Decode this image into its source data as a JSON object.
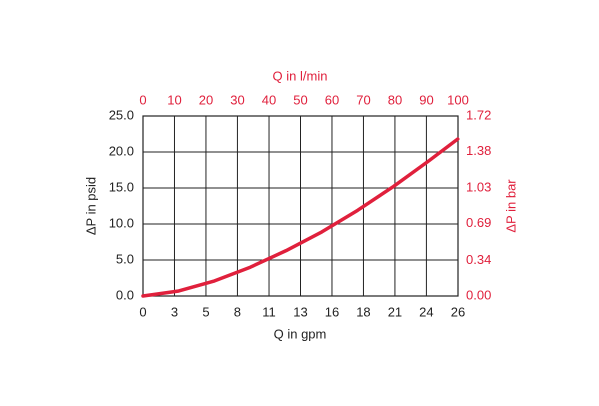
{
  "chart_data": {
    "type": "line",
    "x_label": "Q in gpm",
    "x2_label": "Q in l/min",
    "y_label": "ΔP in psid",
    "y2_label": "ΔP in bar",
    "xlim": [
      0,
      26.42
    ],
    "xticks": [
      0,
      {
        "value": 2.64,
        "label": "3"
      },
      {
        "value": 5.28,
        "label": "5"
      },
      {
        "value": 7.92,
        "label": "8"
      },
      {
        "value": 10.57,
        "label": "11"
      },
      {
        "value": 13.21,
        "label": "13"
      },
      {
        "value": 15.85,
        "label": "16"
      },
      {
        "value": 18.49,
        "label": "18"
      },
      {
        "value": 21.13,
        "label": "21"
      },
      {
        "value": 23.77,
        "label": "24"
      },
      {
        "value": 26.42,
        "label": "26"
      }
    ],
    "x2lim": [
      0,
      100
    ],
    "x2ticks": [
      0,
      10,
      20,
      30,
      40,
      50,
      60,
      70,
      80,
      90,
      100
    ],
    "ylim": [
      0,
      25
    ],
    "yticks": [
      {
        "value": 0,
        "label": "0.0"
      },
      {
        "value": 5,
        "label": "5.0"
      },
      {
        "value": 10,
        "label": "10.0"
      },
      {
        "value": 15,
        "label": "15.0"
      },
      {
        "value": 20,
        "label": "20.0"
      },
      {
        "value": 25,
        "label": "25.0"
      }
    ],
    "y2lim": [
      0,
      1.72
    ],
    "y2ticks": [
      {
        "value": 0,
        "label": "0.00"
      },
      0.34,
      0.69,
      1.03,
      1.38,
      1.72
    ],
    "grid": true,
    "accent_color": "#e0203c",
    "series": [
      {
        "color": "#e0203c",
        "x": [
          0,
          3,
          6,
          9,
          12,
          15,
          18,
          21,
          24,
          26.4
        ],
        "values": [
          0,
          0.7,
          2.1,
          4.0,
          6.3,
          8.9,
          11.9,
          15.2,
          18.8,
          21.8
        ]
      }
    ]
  }
}
